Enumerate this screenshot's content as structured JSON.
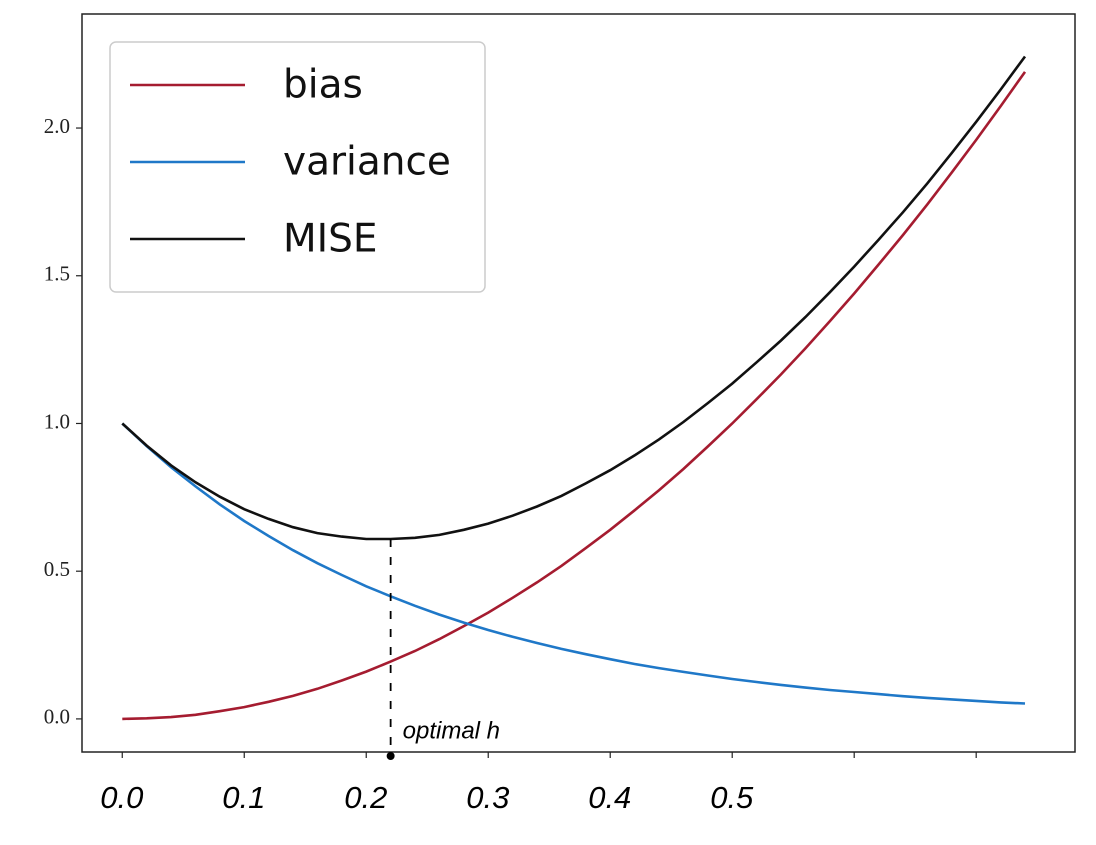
{
  "chart_data": {
    "type": "line",
    "x": [
      0,
      0.02,
      0.04,
      0.06,
      0.08,
      0.1,
      0.12,
      0.14,
      0.16,
      0.18,
      0.2,
      0.22,
      0.24,
      0.26,
      0.28,
      0.3,
      0.32,
      0.34,
      0.36,
      0.38,
      0.4,
      0.42,
      0.44,
      0.46,
      0.48,
      0.5,
      0.52,
      0.54,
      0.56,
      0.58,
      0.6,
      0.62,
      0.64,
      0.66,
      0.68,
      0.7,
      0.72,
      0.74
    ],
    "series": [
      {
        "name": "bias",
        "color": "#a51c30",
        "values": [
          0,
          0.002,
          0.006,
          0.014,
          0.026,
          0.04,
          0.058,
          0.078,
          0.102,
          0.13,
          0.16,
          0.194,
          0.23,
          0.27,
          0.314,
          0.36,
          0.41,
          0.462,
          0.518,
          0.578,
          0.64,
          0.706,
          0.774,
          0.846,
          0.922,
          1.0,
          1.082,
          1.166,
          1.254,
          1.346,
          1.44,
          1.538,
          1.638,
          1.742,
          1.85,
          1.96,
          2.074,
          2.19
        ]
      },
      {
        "name": "variance",
        "color": "#1f78c8",
        "values": [
          1.0,
          0.923,
          0.852,
          0.787,
          0.726,
          0.67,
          0.619,
          0.571,
          0.527,
          0.487,
          0.449,
          0.415,
          0.383,
          0.353,
          0.326,
          0.301,
          0.278,
          0.257,
          0.237,
          0.219,
          0.202,
          0.186,
          0.172,
          0.159,
          0.147,
          0.135,
          0.125,
          0.115,
          0.106,
          0.098,
          0.091,
          0.084,
          0.077,
          0.071,
          0.066,
          0.061,
          0.056,
          0.052
        ]
      },
      {
        "name": "MISE",
        "color": "#111111",
        "values": [
          1.0,
          0.925,
          0.858,
          0.801,
          0.752,
          0.71,
          0.677,
          0.649,
          0.629,
          0.617,
          0.609,
          0.609,
          0.613,
          0.623,
          0.64,
          0.661,
          0.688,
          0.719,
          0.755,
          0.797,
          0.842,
          0.892,
          0.946,
          1.005,
          1.069,
          1.135,
          1.207,
          1.281,
          1.36,
          1.444,
          1.531,
          1.622,
          1.715,
          1.813,
          1.916,
          2.021,
          2.13,
          2.242
        ]
      }
    ],
    "xlim": [
      -0.033,
      0.781
    ],
    "ylim": [
      -0.112,
      2.386
    ],
    "xticks": [
      {
        "value": 0,
        "label": "0.0"
      },
      {
        "value": 0.1,
        "label": "0.1"
      },
      {
        "value": 0.2,
        "label": "0.2"
      },
      {
        "value": 0.3,
        "label": "0.3"
      },
      {
        "value": 0.4,
        "label": "0.4"
      },
      {
        "value": 0.5,
        "label": "0.5"
      },
      {
        "value": 0.6,
        "label": null
      },
      {
        "value": 0.7,
        "label": null
      }
    ],
    "yticks": [
      {
        "value": 0,
        "label": "0.0"
      },
      {
        "value": 0.5,
        "label": "0.5"
      },
      {
        "value": 1,
        "label": "1.0"
      },
      {
        "value": 1.5,
        "label": "1.5"
      },
      {
        "value": 2,
        "label": "2.0"
      }
    ],
    "legend": "upper left",
    "grid": false,
    "annotation": {
      "text": "optimal h",
      "x": 0.22,
      "y": 0.609
    }
  }
}
